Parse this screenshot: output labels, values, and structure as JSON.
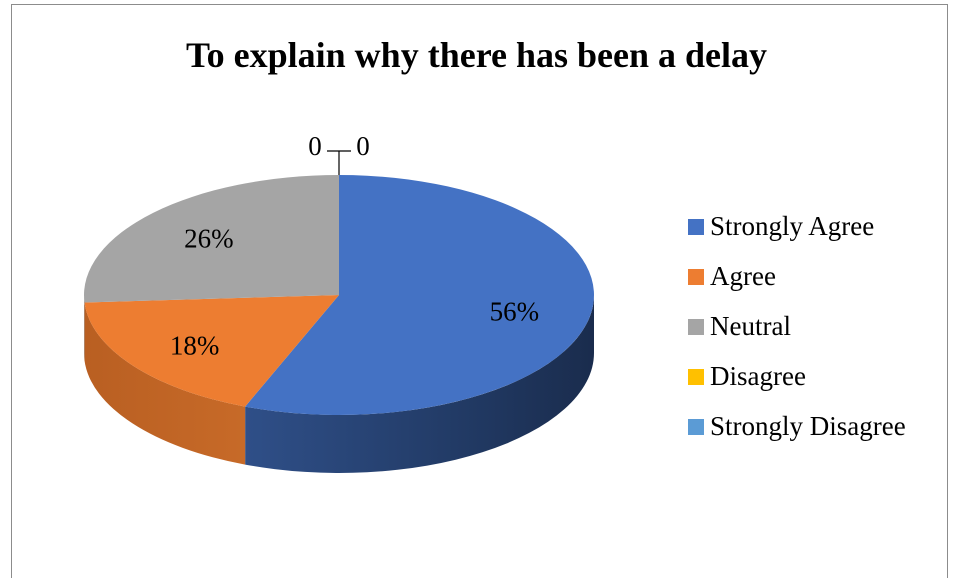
{
  "chart_data": {
    "type": "pie",
    "title": "To explain why there has been a delay",
    "categories": [
      "Strongly Agree",
      "Agree",
      "Neutral",
      "Disagree",
      "Strongly Disagree"
    ],
    "values": [
      56,
      18,
      26,
      0,
      0
    ],
    "data_labels": [
      "56%",
      "18%",
      "26%",
      "0",
      "0"
    ],
    "colors": [
      "#4472C4",
      "#ED7D31",
      "#A5A5A5",
      "#FFC000",
      "#5B9BD5"
    ],
    "legend_position": "right",
    "style": "3d"
  }
}
